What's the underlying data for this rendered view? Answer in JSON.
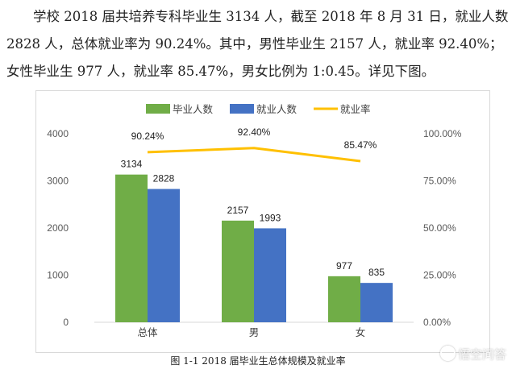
{
  "text": {
    "line1": "学校 2018 届共培养专科毕业生 3134 人，截至 2018 年 8 月 31 日，就业人数",
    "line2": "2828 人，总体就业率为 90.24%。其中，男性毕业生 2157 人，就业率 92.40%；",
    "line3": "女性毕业生 977 人，就业率 85.47%，男女比例为 1:0.45。详见下图。",
    "caption": "图 1-1   2018 届毕业生总体规模及就业率",
    "watermark": "悟空问答"
  },
  "chart_data": {
    "type": "bar",
    "categories": [
      "总体",
      "男",
      "女"
    ],
    "series": [
      {
        "name": "毕业人数",
        "type": "bar",
        "color": "#70ad47",
        "values": [
          3134,
          2157,
          977
        ]
      },
      {
        "name": "就业人数",
        "type": "bar",
        "color": "#4472c4",
        "values": [
          2828,
          1993,
          835
        ]
      },
      {
        "name": "就业率",
        "type": "line",
        "color": "#ffc000",
        "axis": "right",
        "values": [
          90.24,
          92.4,
          85.47
        ],
        "labels": [
          "90.24%",
          "92.40%",
          "85.47%"
        ]
      }
    ],
    "left_axis": {
      "min": 0,
      "max": 4000,
      "ticks": [
        "0",
        "1000",
        "2000",
        "3000",
        "4000"
      ]
    },
    "right_axis": {
      "min": 0,
      "max": 100,
      "ticks": [
        "0.00%",
        "25.00%",
        "50.00%",
        "75.00%",
        "100.00%"
      ]
    },
    "legend_position": "top",
    "grid": false
  }
}
